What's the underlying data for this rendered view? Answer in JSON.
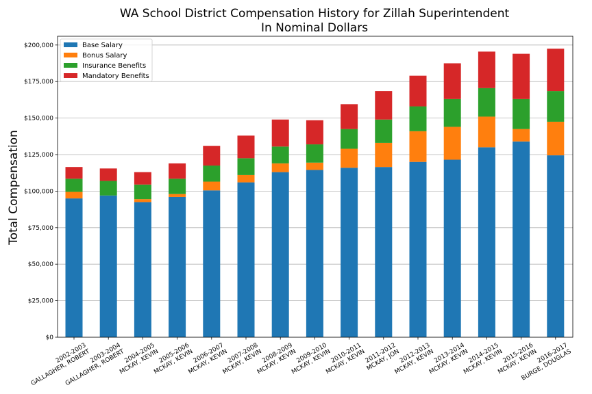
{
  "chart_data": {
    "type": "bar",
    "stacked": true,
    "title": [
      "WA School District Compensation History for Zillah Superintendent",
      "In Nominal Dollars"
    ],
    "xlabel": "",
    "ylabel": "Total Compensation",
    "ylim": [
      0,
      206000
    ],
    "yticks": [
      0,
      25000,
      50000,
      75000,
      100000,
      125000,
      150000,
      175000,
      200000
    ],
    "ytick_labels": [
      "$0",
      "$25,000",
      "$50,000",
      "$75,000",
      "$100,000",
      "$125,000",
      "$150,000",
      "$175,000",
      "$200,000"
    ],
    "grid": "horizontal",
    "legend": "top-left",
    "categories": [
      [
        "2002-2003",
        "GALLAGHER, ROBERT"
      ],
      [
        "2003-2004",
        "GALLAGHER, ROBERT"
      ],
      [
        "2004-2005",
        "MCKAY, KEVIN"
      ],
      [
        "2005-2006",
        "MCKAY, KEVIN"
      ],
      [
        "2006-2007",
        "MCKAY, KEVIN"
      ],
      [
        "2007-2008",
        "MCKAY, KEVIN"
      ],
      [
        "2008-2009",
        "MCKAY, KEVIN"
      ],
      [
        "2009-2010",
        "MCKAY, KEVIN"
      ],
      [
        "2010-2011",
        "MCKAY, KEVIN"
      ],
      [
        "2011-2012",
        "MCKAY, JON"
      ],
      [
        "2012-2013",
        "MCKAY, KEVIN"
      ],
      [
        "2013-2014",
        "MCKAY, KEVIN"
      ],
      [
        "2014-2015",
        "MCKAY, KEVIN"
      ],
      [
        "2015-2016",
        "MCKAY, KEVIN"
      ],
      [
        "2016-2017",
        "BURGE, DOUGLAS"
      ]
    ],
    "series": [
      {
        "name": "Base Salary",
        "color": "#1f77b4",
        "values": [
          95000,
          97000,
          92500,
          96000,
          100500,
          106000,
          113000,
          114500,
          116000,
          116500,
          120000,
          121500,
          130000,
          134000,
          124500
        ]
      },
      {
        "name": "Bonus Salary",
        "color": "#ff7f0e",
        "values": [
          4500,
          0,
          2000,
          2000,
          6000,
          5000,
          6000,
          5000,
          13000,
          16500,
          21000,
          22500,
          21000,
          8500,
          23000
        ]
      },
      {
        "name": "Insurance Benefits",
        "color": "#2ca02c",
        "values": [
          9000,
          10000,
          10000,
          10500,
          11000,
          11500,
          11500,
          12500,
          13500,
          16000,
          17000,
          19000,
          19500,
          20500,
          21000
        ]
      },
      {
        "name": "Mandatory Benefits",
        "color": "#d62728",
        "values": [
          8000,
          8500,
          8500,
          10500,
          13500,
          15500,
          18500,
          16500,
          17000,
          19500,
          21000,
          24500,
          25000,
          31000,
          29000
        ]
      }
    ]
  }
}
